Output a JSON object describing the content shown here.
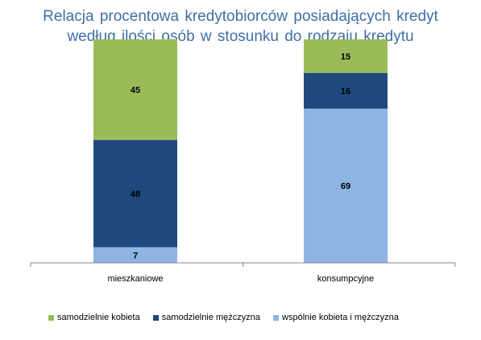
{
  "chart_data": {
    "type": "bar",
    "stacked": true,
    "percent_stacked": true,
    "title_lines": [
      "Relacja procentowa kredytobiorców posiadających kredyt",
      "według ilości osób w stosunku do rodzaju kredytu"
    ],
    "categories": [
      "mieszkaniowe",
      "konsumpcyjne"
    ],
    "series": [
      {
        "name": "wspólnie kobieta i mężczyzna",
        "values": [
          7,
          69
        ],
        "color": "#8db4e2"
      },
      {
        "name": "samodzielnie mężczyzna",
        "values": [
          48,
          16
        ],
        "color": "#1f497d"
      },
      {
        "name": "samodzielnie kobieta",
        "values": [
          45,
          15
        ],
        "color": "#9bbb59"
      }
    ],
    "legend_order": [
      "samodzielnie kobieta",
      "samodzielnie mężczyzna",
      "wspólnie kobieta i mężczyzna"
    ],
    "ylim": [
      0,
      100
    ],
    "legend_position": "bottom",
    "grid": false
  }
}
